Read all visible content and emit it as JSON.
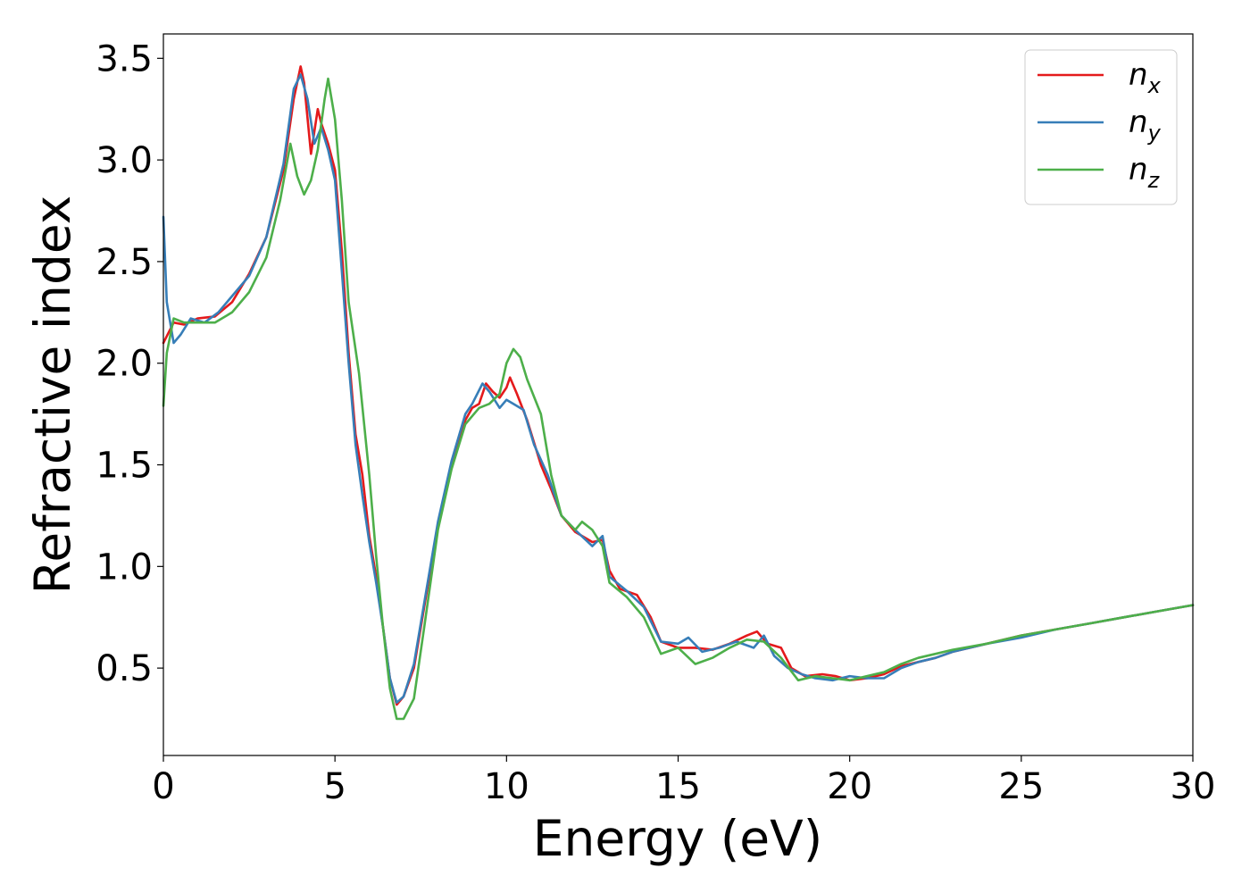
{
  "chart_data": {
    "type": "line",
    "title": "",
    "xlabel": "Energy (eV)",
    "ylabel": "Refractive index",
    "xlim": [
      0,
      30
    ],
    "ylim": [
      0.07,
      3.62
    ],
    "xticks": [
      0,
      5,
      10,
      15,
      20,
      25,
      30
    ],
    "xtick_labels": [
      "0",
      "5",
      "10",
      "15",
      "20",
      "25",
      "30"
    ],
    "yticks": [
      0.5,
      1.0,
      1.5,
      2.0,
      2.5,
      3.0,
      3.5
    ],
    "ytick_labels": [
      "0.5",
      "1.0",
      "1.5",
      "2.0",
      "2.5",
      "3.0",
      "3.5"
    ],
    "grid": false,
    "legend_position": "top-right",
    "series": [
      {
        "name": "n",
        "subscript": "x",
        "color": "#e41a1c",
        "points": [
          [
            0,
            2.1
          ],
          [
            0.3,
            2.2
          ],
          [
            0.6,
            2.19
          ],
          [
            1,
            2.22
          ],
          [
            1.5,
            2.23
          ],
          [
            2,
            2.3
          ],
          [
            2.5,
            2.44
          ],
          [
            3,
            2.62
          ],
          [
            3.5,
            2.95
          ],
          [
            3.8,
            3.3
          ],
          [
            4.0,
            3.46
          ],
          [
            4.1,
            3.38
          ],
          [
            4.3,
            3.03
          ],
          [
            4.5,
            3.25
          ],
          [
            4.6,
            3.18
          ],
          [
            4.8,
            3.08
          ],
          [
            5.0,
            2.95
          ],
          [
            5.2,
            2.55
          ],
          [
            5.4,
            2.05
          ],
          [
            5.6,
            1.65
          ],
          [
            5.8,
            1.45
          ],
          [
            6.0,
            1.15
          ],
          [
            6.2,
            0.95
          ],
          [
            6.4,
            0.7
          ],
          [
            6.6,
            0.45
          ],
          [
            6.8,
            0.32
          ],
          [
            7.0,
            0.36
          ],
          [
            7.3,
            0.5
          ],
          [
            7.6,
            0.8
          ],
          [
            8.0,
            1.2
          ],
          [
            8.4,
            1.5
          ],
          [
            8.8,
            1.72
          ],
          [
            9.0,
            1.78
          ],
          [
            9.2,
            1.8
          ],
          [
            9.4,
            1.9
          ],
          [
            9.6,
            1.86
          ],
          [
            9.8,
            1.83
          ],
          [
            10.0,
            1.88
          ],
          [
            10.1,
            1.93
          ],
          [
            10.3,
            1.85
          ],
          [
            10.6,
            1.72
          ],
          [
            11.0,
            1.5
          ],
          [
            11.3,
            1.38
          ],
          [
            11.6,
            1.25
          ],
          [
            12.0,
            1.17
          ],
          [
            12.5,
            1.12
          ],
          [
            12.8,
            1.13
          ],
          [
            13.0,
            0.98
          ],
          [
            13.3,
            0.89
          ],
          [
            13.8,
            0.86
          ],
          [
            14.2,
            0.75
          ],
          [
            14.5,
            0.63
          ],
          [
            15.0,
            0.6
          ],
          [
            15.5,
            0.6
          ],
          [
            16.0,
            0.59
          ],
          [
            16.5,
            0.62
          ],
          [
            17.0,
            0.66
          ],
          [
            17.3,
            0.68
          ],
          [
            17.6,
            0.62
          ],
          [
            18.0,
            0.6
          ],
          [
            18.3,
            0.5
          ],
          [
            18.7,
            0.46
          ],
          [
            19.2,
            0.47
          ],
          [
            19.6,
            0.46
          ],
          [
            20.0,
            0.44
          ],
          [
            20.5,
            0.45
          ],
          [
            21.0,
            0.47
          ],
          [
            21.5,
            0.51
          ],
          [
            22.0,
            0.53
          ],
          [
            22.5,
            0.55
          ],
          [
            23.0,
            0.58
          ],
          [
            24.0,
            0.62
          ],
          [
            25.0,
            0.66
          ],
          [
            26.0,
            0.69
          ],
          [
            27.0,
            0.72
          ],
          [
            28.0,
            0.75
          ],
          [
            29.0,
            0.78
          ],
          [
            30.0,
            0.81
          ]
        ]
      },
      {
        "name": "n",
        "subscript": "y",
        "color": "#377eb8",
        "points": [
          [
            0,
            2.72
          ],
          [
            0.1,
            2.3
          ],
          [
            0.3,
            2.1
          ],
          [
            0.5,
            2.14
          ],
          [
            0.8,
            2.22
          ],
          [
            1.2,
            2.2
          ],
          [
            1.6,
            2.25
          ],
          [
            2.0,
            2.33
          ],
          [
            2.5,
            2.43
          ],
          [
            3.0,
            2.62
          ],
          [
            3.5,
            2.98
          ],
          [
            3.8,
            3.35
          ],
          [
            4.0,
            3.42
          ],
          [
            4.2,
            3.3
          ],
          [
            4.4,
            3.08
          ],
          [
            4.6,
            3.16
          ],
          [
            4.8,
            3.05
          ],
          [
            5.0,
            2.9
          ],
          [
            5.2,
            2.45
          ],
          [
            5.4,
            2.0
          ],
          [
            5.6,
            1.6
          ],
          [
            5.8,
            1.35
          ],
          [
            6.0,
            1.12
          ],
          [
            6.2,
            0.92
          ],
          [
            6.4,
            0.7
          ],
          [
            6.6,
            0.45
          ],
          [
            6.8,
            0.33
          ],
          [
            7.0,
            0.36
          ],
          [
            7.3,
            0.52
          ],
          [
            7.6,
            0.82
          ],
          [
            8.0,
            1.22
          ],
          [
            8.4,
            1.52
          ],
          [
            8.8,
            1.75
          ],
          [
            9.0,
            1.8
          ],
          [
            9.3,
            1.9
          ],
          [
            9.5,
            1.86
          ],
          [
            9.8,
            1.78
          ],
          [
            10.0,
            1.82
          ],
          [
            10.2,
            1.8
          ],
          [
            10.5,
            1.77
          ],
          [
            10.8,
            1.6
          ],
          [
            11.2,
            1.45
          ],
          [
            11.6,
            1.25
          ],
          [
            12.0,
            1.18
          ],
          [
            12.5,
            1.1
          ],
          [
            12.8,
            1.15
          ],
          [
            13.0,
            0.95
          ],
          [
            13.5,
            0.88
          ],
          [
            14.0,
            0.8
          ],
          [
            14.5,
            0.63
          ],
          [
            15.0,
            0.62
          ],
          [
            15.3,
            0.65
          ],
          [
            15.7,
            0.58
          ],
          [
            16.2,
            0.6
          ],
          [
            16.7,
            0.63
          ],
          [
            17.2,
            0.6
          ],
          [
            17.5,
            0.66
          ],
          [
            17.8,
            0.56
          ],
          [
            18.2,
            0.5
          ],
          [
            18.6,
            0.47
          ],
          [
            19.0,
            0.45
          ],
          [
            19.5,
            0.44
          ],
          [
            20.0,
            0.46
          ],
          [
            20.5,
            0.45
          ],
          [
            21.0,
            0.45
          ],
          [
            21.5,
            0.5
          ],
          [
            22.0,
            0.53
          ],
          [
            22.5,
            0.55
          ],
          [
            23.0,
            0.58
          ],
          [
            24.0,
            0.62
          ],
          [
            25.0,
            0.65
          ],
          [
            26.0,
            0.69
          ],
          [
            27.0,
            0.72
          ],
          [
            28.0,
            0.75
          ],
          [
            29.0,
            0.78
          ],
          [
            30.0,
            0.81
          ]
        ]
      },
      {
        "name": "n",
        "subscript": "z",
        "color": "#4daf4a",
        "points": [
          [
            0,
            1.79
          ],
          [
            0.1,
            2.05
          ],
          [
            0.3,
            2.22
          ],
          [
            0.6,
            2.2
          ],
          [
            1.0,
            2.2
          ],
          [
            1.5,
            2.2
          ],
          [
            2.0,
            2.25
          ],
          [
            2.5,
            2.35
          ],
          [
            3.0,
            2.52
          ],
          [
            3.4,
            2.8
          ],
          [
            3.7,
            3.08
          ],
          [
            3.9,
            2.92
          ],
          [
            4.1,
            2.83
          ],
          [
            4.3,
            2.9
          ],
          [
            4.5,
            3.05
          ],
          [
            4.7,
            3.3
          ],
          [
            4.8,
            3.4
          ],
          [
            5.0,
            3.2
          ],
          [
            5.2,
            2.8
          ],
          [
            5.4,
            2.3
          ],
          [
            5.7,
            1.95
          ],
          [
            6.0,
            1.45
          ],
          [
            6.2,
            1.05
          ],
          [
            6.4,
            0.7
          ],
          [
            6.6,
            0.4
          ],
          [
            6.8,
            0.25
          ],
          [
            7.0,
            0.25
          ],
          [
            7.3,
            0.35
          ],
          [
            7.6,
            0.7
          ],
          [
            8.0,
            1.18
          ],
          [
            8.4,
            1.48
          ],
          [
            8.8,
            1.7
          ],
          [
            9.2,
            1.78
          ],
          [
            9.5,
            1.8
          ],
          [
            9.8,
            1.85
          ],
          [
            10.0,
            2.0
          ],
          [
            10.2,
            2.07
          ],
          [
            10.4,
            2.03
          ],
          [
            10.6,
            1.92
          ],
          [
            11.0,
            1.75
          ],
          [
            11.3,
            1.45
          ],
          [
            11.6,
            1.25
          ],
          [
            12.0,
            1.18
          ],
          [
            12.2,
            1.22
          ],
          [
            12.5,
            1.18
          ],
          [
            12.8,
            1.1
          ],
          [
            13.0,
            0.92
          ],
          [
            13.5,
            0.85
          ],
          [
            14.0,
            0.75
          ],
          [
            14.5,
            0.57
          ],
          [
            15.0,
            0.6
          ],
          [
            15.5,
            0.52
          ],
          [
            16.0,
            0.55
          ],
          [
            16.5,
            0.6
          ],
          [
            17.0,
            0.64
          ],
          [
            17.5,
            0.63
          ],
          [
            18.0,
            0.55
          ],
          [
            18.5,
            0.44
          ],
          [
            19.0,
            0.46
          ],
          [
            19.5,
            0.45
          ],
          [
            20.0,
            0.44
          ],
          [
            20.5,
            0.46
          ],
          [
            21.0,
            0.48
          ],
          [
            21.5,
            0.52
          ],
          [
            22.0,
            0.55
          ],
          [
            22.5,
            0.57
          ],
          [
            23.0,
            0.59
          ],
          [
            24.0,
            0.62
          ],
          [
            25.0,
            0.66
          ],
          [
            26.0,
            0.69
          ],
          [
            27.0,
            0.72
          ],
          [
            28.0,
            0.75
          ],
          [
            29.0,
            0.78
          ],
          [
            30.0,
            0.81
          ]
        ]
      }
    ]
  }
}
